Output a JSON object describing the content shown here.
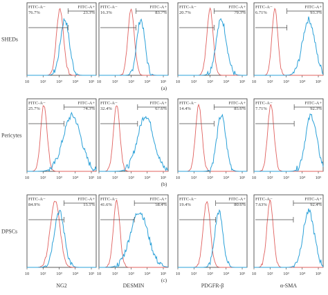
{
  "rows": [
    {
      "label": "SHEDs",
      "caption": "(a)",
      "panels": [
        {
          "neg_label": "FITC-A−",
          "neg_pct": "76.7%",
          "pos_label": "FITC-A+",
          "pos_pct": "23.3%"
        },
        {
          "neg_label": "FITC-A−",
          "neg_pct": "16.3%",
          "pos_label": "FITC-A+",
          "pos_pct": "83.7%"
        },
        {
          "neg_label": "FITC-A−",
          "neg_pct": "20.7%",
          "pos_label": "FITC-A+",
          "pos_pct": "79.3%"
        },
        {
          "neg_label": "FITC-A−",
          "neg_pct": "6.71%",
          "pos_label": "FITC-A+",
          "pos_pct": "93.3%"
        }
      ]
    },
    {
      "label": "Pericytes",
      "caption": "(b)",
      "panels": [
        {
          "neg_label": "FITC-A−",
          "neg_pct": "25.7%",
          "pos_label": "FITC-A+",
          "pos_pct": "74.3%"
        },
        {
          "neg_label": "FITC-A−",
          "neg_pct": "32.4%",
          "pos_label": "FITC-A+",
          "pos_pct": "67.6%"
        },
        {
          "neg_label": "FITC-A−",
          "neg_pct": "14.4%",
          "pos_label": "FITC-A+",
          "pos_pct": "85.6%"
        },
        {
          "neg_label": "FITC-A−",
          "neg_pct": "7.71%",
          "pos_label": "FITC-A+",
          "pos_pct": "92.3%"
        }
      ]
    },
    {
      "label": "DPSCs",
      "caption": "(c)",
      "panels": [
        {
          "neg_label": "FITC-A−",
          "neg_pct": "84.9%",
          "pos_label": "FITC-A+",
          "pos_pct": "15.1%"
        },
        {
          "neg_label": "FITC-A−",
          "neg_pct": "41.6%",
          "pos_label": "FITC-A+",
          "pos_pct": "58.4%"
        },
        {
          "neg_label": "FITC-A−",
          "neg_pct": "19.4%",
          "pos_label": "FITC-A+",
          "pos_pct": "80.6%"
        },
        {
          "neg_label": "FITC-A−",
          "neg_pct": "7.63%",
          "pos_label": "FITC-A+",
          "pos_pct": "92.4%"
        }
      ]
    }
  ],
  "column_labels": [
    "NG2",
    "DESMIN",
    "PDGFR-β",
    "α-SMA"
  ],
  "x_ticks": [
    "10",
    "10²",
    "10³",
    "10⁴",
    "10⁵"
  ],
  "colors": {
    "isotype": "#e0605e",
    "stained": "#2aa0d8"
  },
  "chart_data": {
    "type": "histogram-grid",
    "x_axis": {
      "scale": "log",
      "ticks": [
        "10",
        "10²",
        "10³",
        "10⁴",
        "10⁵"
      ],
      "range": [
        10,
        200000
      ]
    },
    "rows": [
      "SHEDs",
      "Pericytes",
      "DPSCs"
    ],
    "columns": [
      "NG2",
      "DESMIN",
      "PDGFR-β",
      "α-SMA"
    ],
    "panels": [
      {
        "row": "SHEDs",
        "col": "NG2",
        "neg_pct": 76.7,
        "pos_pct": 23.3,
        "neg_peak_log": 3.05,
        "neg_width": 0.22,
        "pos_peak_log": 3.35,
        "pos_width": 0.28,
        "gate_log": 3.55
      },
      {
        "row": "SHEDs",
        "col": "DESMIN",
        "neg_pct": 16.3,
        "pos_pct": 83.7,
        "neg_peak_log": 3.0,
        "neg_width": 0.2,
        "pos_peak_log": 3.6,
        "pos_width": 0.25,
        "gate_log": 3.3
      },
      {
        "row": "SHEDs",
        "col": "PDGFR-β",
        "neg_pct": 20.7,
        "pos_pct": 79.3,
        "neg_peak_log": 3.0,
        "neg_width": 0.2,
        "pos_peak_log": 3.7,
        "pos_width": 0.32,
        "gate_log": 3.25
      },
      {
        "row": "SHEDs",
        "col": "α-SMA",
        "neg_pct": 6.71,
        "pos_pct": 93.3,
        "neg_peak_log": 2.3,
        "neg_width": 0.18,
        "pos_peak_log": 4.4,
        "pos_width": 0.38,
        "gate_log": 3.05
      },
      {
        "row": "Pericytes",
        "col": "NG2",
        "neg_pct": 25.7,
        "pos_pct": 74.3,
        "neg_peak_log": 2.05,
        "neg_width": 0.2,
        "pos_peak_log": 3.8,
        "pos_width": 0.55,
        "gate_log": 3.3
      },
      {
        "row": "Pericytes",
        "col": "DESMIN",
        "neg_pct": 32.4,
        "pos_pct": 67.6,
        "neg_peak_log": 2.1,
        "neg_width": 0.2,
        "pos_peak_log": 3.9,
        "pos_width": 0.5,
        "gate_log": 3.4
      },
      {
        "row": "Pericytes",
        "col": "PDGFR-β",
        "neg_pct": 14.4,
        "pos_pct": 85.6,
        "neg_peak_log": 2.3,
        "neg_width": 0.2,
        "pos_peak_log": 3.7,
        "pos_width": 0.28,
        "gate_log": 3.25
      },
      {
        "row": "Pericytes",
        "col": "α-SMA",
        "neg_pct": 7.71,
        "pos_pct": 92.3,
        "neg_peak_log": 2.05,
        "neg_width": 0.2,
        "pos_peak_log": 4.55,
        "pos_width": 0.35,
        "gate_log": 3.5
      },
      {
        "row": "DPSCs",
        "col": "NG2",
        "neg_pct": 84.9,
        "pos_pct": 15.1,
        "neg_peak_log": 2.75,
        "neg_width": 0.3,
        "pos_peak_log": 3.0,
        "pos_width": 0.32,
        "gate_log": 3.3
      },
      {
        "row": "DPSCs",
        "col": "DESMIN",
        "neg_pct": 41.6,
        "pos_pct": 58.4,
        "neg_peak_log": 2.1,
        "neg_width": 0.2,
        "pos_peak_log": 3.5,
        "pos_width": 0.55,
        "gate_log": 3.2
      },
      {
        "row": "DPSCs",
        "col": "PDGFR-β",
        "neg_pct": 19.4,
        "pos_pct": 80.6,
        "neg_peak_log": 2.8,
        "neg_width": 0.22,
        "pos_peak_log": 3.55,
        "pos_width": 0.25,
        "gate_log": 3.35
      },
      {
        "row": "DPSCs",
        "col": "α-SMA",
        "neg_pct": 7.63,
        "pos_pct": 92.4,
        "neg_peak_log": 2.0,
        "neg_width": 0.2,
        "pos_peak_log": 4.4,
        "pos_width": 0.35,
        "gate_log": 3.45
      }
    ]
  }
}
